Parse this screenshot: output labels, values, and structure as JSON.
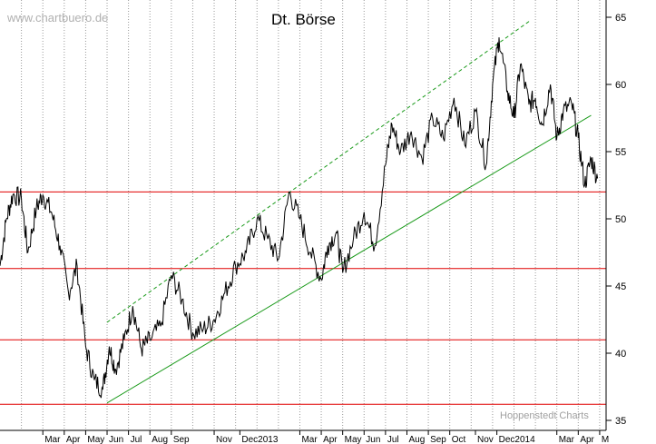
{
  "chart_data": {
    "type": "line",
    "title": "Dt. Börse",
    "watermark": "www.chartbuero.de",
    "source": "Hoppenstedt Charts",
    "ylim": [
      35,
      66
    ],
    "yticks": [
      35,
      40,
      45,
      50,
      55,
      60,
      65
    ],
    "grid": "vertical dotted lines at month boundaries",
    "x_labels": [
      "Mar",
      "Apr",
      "May",
      "Jun",
      "Jul",
      "Aug",
      "Sep",
      "Nov",
      "Dec2013",
      "Mar",
      "Apr",
      "May",
      "Jun",
      "Jul",
      "Aug",
      "Sep",
      "Oct",
      "Nov",
      "Dec2014",
      "Mar",
      "Apr",
      "M"
    ],
    "x_label_months": [
      2,
      3,
      4,
      5,
      6,
      7,
      8,
      10,
      11.2,
      14,
      15,
      16,
      17,
      18,
      19,
      20,
      21,
      22.2,
      23.2,
      26,
      27,
      28
    ],
    "month_range": [
      0,
      28.3
    ],
    "series": [
      {
        "values_month": [
          0,
          0.3,
          0.6,
          1.0,
          1.3,
          1.7,
          2.0,
          2.4,
          2.8,
          3.2,
          3.6,
          4.0,
          4.4,
          4.8,
          5.1,
          5.4,
          5.8,
          6.2,
          6.6,
          7.0,
          7.5,
          8.0,
          8.5,
          9.0,
          9.5,
          10.0,
          10.5,
          11.0,
          11.5,
          12.0,
          12.5,
          13.0,
          13.5,
          14.0,
          14.5,
          15.0,
          15.3,
          15.7,
          16.0,
          16.5,
          17.0,
          17.5,
          18.0,
          18.3,
          18.7,
          19.2,
          19.7,
          20.2,
          20.7,
          21.2,
          21.7,
          22.2,
          22.7,
          23.0,
          23.3,
          23.7,
          24.0,
          24.3,
          24.7,
          25.0,
          25.3,
          25.7,
          26.0,
          26.3,
          26.7,
          27.0,
          27.3,
          27.6,
          27.9
        ],
        "values": [
          46.5,
          50.0,
          51.8,
          51.5,
          47.5,
          50.8,
          51.8,
          50.5,
          48.0,
          44.5,
          46.5,
          40.5,
          38.0,
          37.3,
          40.5,
          38.8,
          41.0,
          43.5,
          40.3,
          41.0,
          42.0,
          45.8,
          44.0,
          41.5,
          41.8,
          42.5,
          44.5,
          46.5,
          47.5,
          50.0,
          48.5,
          47.0,
          52.0,
          50.0,
          47.5,
          45.5,
          48.0,
          49.0,
          46.0,
          48.5,
          50.5,
          48.0,
          54.0,
          57.0,
          55.0,
          56.5,
          54.5,
          57.5,
          56.0,
          59.0,
          55.5,
          58.0,
          54.0,
          60.0,
          63.5,
          59.5,
          57.5,
          61.5,
          58.5,
          59.0,
          57.0,
          60.0,
          56.0,
          58.0,
          58.5,
          56.0,
          52.5,
          54.5,
          53.0
        ]
      }
    ],
    "horizontal_lines": [
      52.0,
      46.3,
      41.0,
      36.2
    ],
    "channel": {
      "support": {
        "from": [
          5.0,
          36.3
        ],
        "to": [
          27.6,
          57.7
        ]
      },
      "resistance": {
        "from": [
          5.0,
          42.3
        ],
        "to": [
          24.8,
          64.8
        ]
      }
    }
  }
}
